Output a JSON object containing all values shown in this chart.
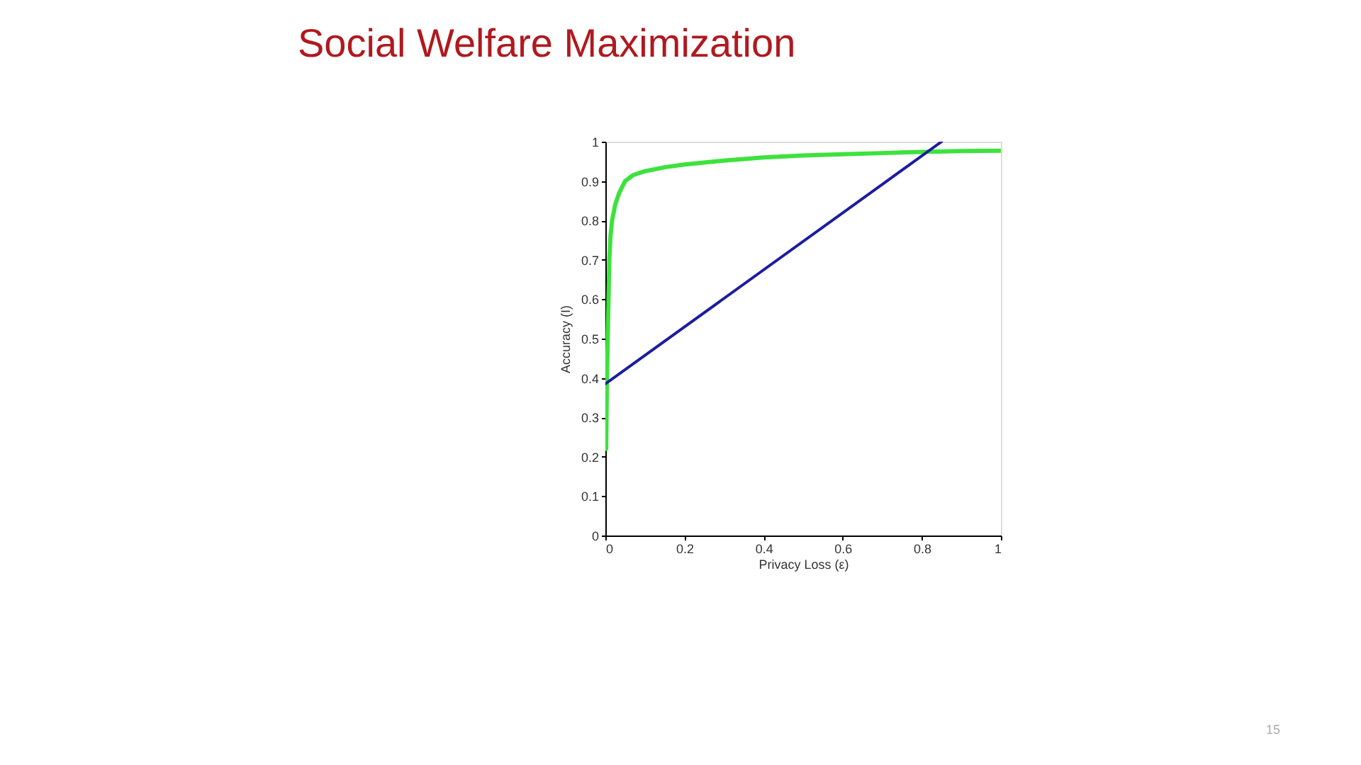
{
  "chart_data": {
    "type": "line",
    "title": "Social Welfare Maximization",
    "xlabel": "Privacy Loss (ε)",
    "ylabel": "Accuracy (I)",
    "xlim": [
      0,
      1
    ],
    "ylim": [
      0,
      1
    ],
    "xticks": [
      0,
      0.2,
      0.4,
      0.6,
      0.8,
      1
    ],
    "yticks": [
      0,
      0.1,
      0.2,
      0.3,
      0.4,
      0.5,
      0.6,
      0.7,
      0.8,
      0.9,
      1
    ],
    "grid": false,
    "legend": false,
    "marker": "none",
    "line_style": "solid",
    "series": [
      {
        "color": "#3de23d",
        "x": [
          0.002,
          0.004,
          0.007,
          0.01,
          0.013,
          0.017,
          0.025,
          0.035,
          0.05,
          0.07,
          0.1,
          0.15,
          0.2,
          0.3,
          0.4,
          0.5,
          0.6,
          0.7,
          0.8,
          0.9,
          1.0
        ],
        "values": [
          0.22,
          0.4,
          0.55,
          0.7,
          0.76,
          0.8,
          0.84,
          0.87,
          0.9,
          0.915,
          0.925,
          0.935,
          0.942,
          0.952,
          0.96,
          0.965,
          0.968,
          0.971,
          0.974,
          0.976,
          0.977
        ]
      },
      {
        "color": "#1c1ca0",
        "x": [
          0,
          0.85
        ],
        "values": [
          0.385,
          1
        ]
      }
    ],
    "annotations": [
      "15"
    ]
  }
}
